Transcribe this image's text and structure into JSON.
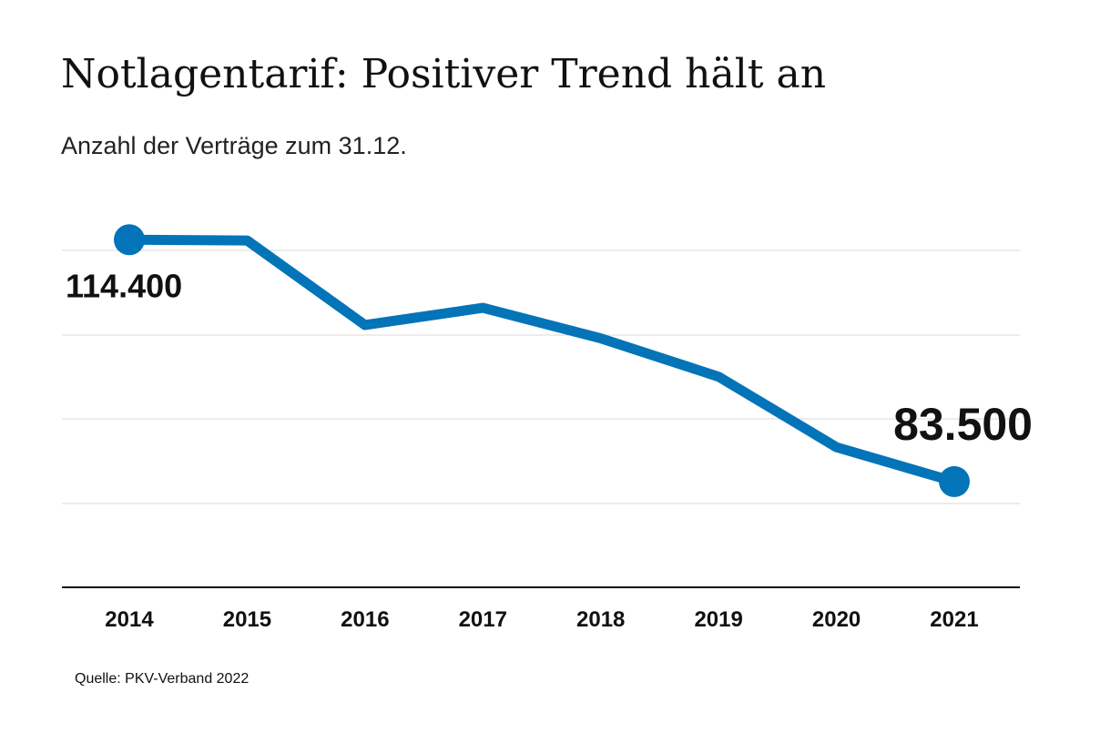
{
  "title": "Notlagentarif: Positiver Trend hält an",
  "subtitle": "Anzahl der Verträge zum 31.12.",
  "source": "Quelle: PKV-Verband 2022",
  "colors": {
    "line": "#0474b8",
    "grid": "#d9d9d9",
    "axis": "#111111",
    "text": "#111111"
  },
  "chart_data": {
    "type": "line",
    "title": "Notlagentarif: Positiver Trend hält an",
    "subtitle": "Anzahl der Verträge zum 31.12.",
    "xlabel": "",
    "ylabel": "",
    "categories": [
      "2014",
      "2015",
      "2016",
      "2017",
      "2018",
      "2019",
      "2020",
      "2021"
    ],
    "series": [
      {
        "values": [
          114400,
          114300,
          103500,
          105700,
          101800,
          96900,
          87900,
          83500
        ]
      }
    ],
    "data_labels": [
      {
        "category": "2014",
        "text": "114.400"
      },
      {
        "category": "2021",
        "text": "83.500"
      }
    ],
    "ylim": [
      70000,
      118500
    ],
    "grid": true,
    "y_tick_labels_shown": false,
    "legend": "none"
  }
}
